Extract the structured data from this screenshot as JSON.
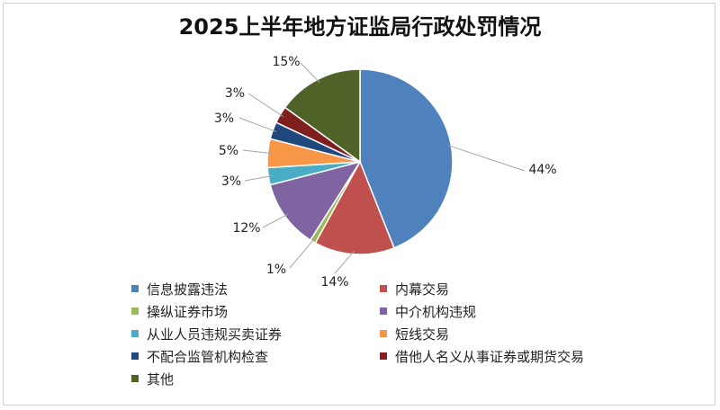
{
  "chart_data": {
    "type": "pie",
    "title": "2025上半年地方证监局行政处罚情况",
    "start_angle_deg": 0,
    "direction": "clockwise",
    "categories": [
      "信息披露违法",
      "内幕交易",
      "操纵证券市场",
      "中介机构违规",
      "从业人员违规买卖证券",
      "短线交易",
      "不配合监管机构检查",
      "借他人名义从事证券或期货交易",
      "其他"
    ],
    "values": [
      44,
      14,
      1,
      12,
      3,
      5,
      3,
      3,
      15
    ],
    "labels": [
      "44%",
      "14%",
      "1%",
      "12%",
      "3%",
      "5%",
      "3%",
      "3%",
      "15%"
    ],
    "colors": [
      "#4f81bd",
      "#c0504d",
      "#9bbb59",
      "#8064a2",
      "#4bacc6",
      "#f79646",
      "#1f497d",
      "#7f1f1f",
      "#4f6228"
    ],
    "legend_position": "bottom"
  }
}
